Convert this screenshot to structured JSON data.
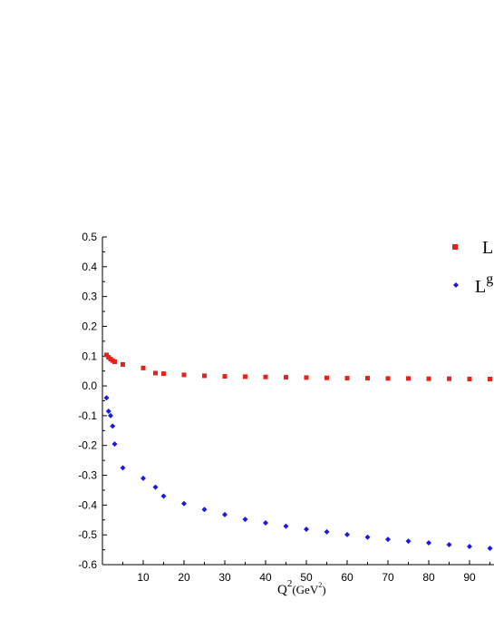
{
  "chart_data": {
    "type": "scatter",
    "title": "",
    "xlabel": {
      "base": "Q",
      "sup": "2",
      "open": "(GeV",
      "unit_sup": "2",
      "close": ")"
    },
    "ylabel": "",
    "xlim": [
      0,
      96
    ],
    "ylim": [
      -0.6,
      0.5
    ],
    "xticks": [
      10,
      20,
      30,
      40,
      50,
      60,
      70,
      80,
      90
    ],
    "yticks": [
      -0.6,
      -0.5,
      -0.4,
      -0.3,
      -0.2,
      -0.1,
      0.0,
      0.1,
      0.2,
      0.3,
      0.4,
      0.5
    ],
    "ytick_labels": [
      "-0.6",
      "-0.5",
      "-0.4",
      "-0.3",
      "-0.2",
      "-0.1",
      "0.0",
      "0.1",
      "0.2",
      "0.3",
      "0.4",
      "0.5"
    ],
    "grid": false,
    "legend_position": "top-right",
    "series": [
      {
        "name": "L",
        "marker": "square",
        "color": "#e8211b",
        "x": [
          1,
          1.5,
          2,
          2.5,
          3,
          5,
          10,
          13,
          15,
          20,
          25,
          30,
          35,
          40,
          45,
          50,
          55,
          60,
          65,
          70,
          75,
          80,
          85,
          90,
          95
        ],
        "y": [
          0.104,
          0.096,
          0.09,
          0.085,
          0.081,
          0.072,
          0.06,
          0.043,
          0.041,
          0.037,
          0.034,
          0.032,
          0.031,
          0.03,
          0.029,
          0.028,
          0.027,
          0.026,
          0.026,
          0.025,
          0.025,
          0.024,
          0.024,
          0.023,
          0.023
        ]
      },
      {
        "name": "L",
        "name_sup": "g",
        "marker": "diamond",
        "color": "#1a1ae6",
        "x": [
          1,
          1.5,
          2,
          2.5,
          3,
          5,
          10,
          13,
          15,
          20,
          25,
          30,
          35,
          40,
          45,
          50,
          55,
          60,
          65,
          70,
          75,
          80,
          85,
          90,
          95
        ],
        "y": [
          -0.04,
          -0.085,
          -0.1,
          -0.135,
          -0.195,
          -0.275,
          -0.31,
          -0.34,
          -0.37,
          -0.395,
          -0.415,
          -0.432,
          -0.448,
          -0.46,
          -0.471,
          -0.481,
          -0.49,
          -0.499,
          -0.508,
          -0.515,
          -0.521,
          -0.527,
          -0.533,
          -0.539,
          -0.545
        ]
      }
    ]
  }
}
